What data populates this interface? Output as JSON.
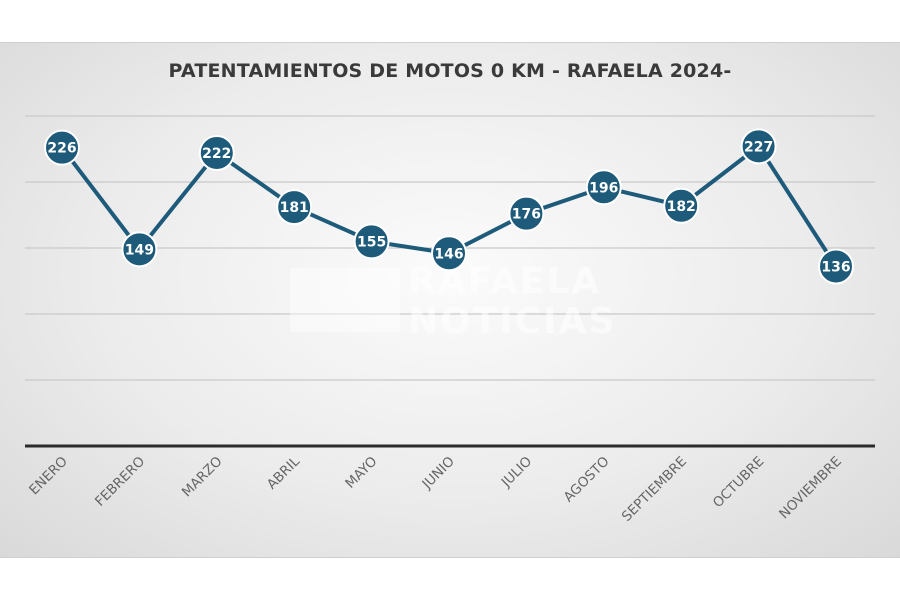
{
  "chart_data": {
    "type": "line",
    "title": "PATENTAMIENTOS DE MOTOS 0 KM - RAFAELA 2024-",
    "categories": [
      "ENERO",
      "FEBRERO",
      "MARZO",
      "ABRIL",
      "MAYO",
      "JUNIO",
      "JULIO",
      "AGOSTO",
      "SEPTIEMBRE",
      "OCTUBRE",
      "NOVIEMBRE"
    ],
    "values": [
      226,
      149,
      222,
      181,
      155,
      146,
      176,
      196,
      182,
      227,
      136
    ],
    "ylim": [
      0,
      250
    ],
    "grid": true,
    "legend": "none",
    "colors": {
      "series": "#1e5a7a",
      "label_text": "#ffffff"
    }
  },
  "watermark": {
    "line1": "RAFAELA",
    "line2": "NOTICIAS"
  }
}
